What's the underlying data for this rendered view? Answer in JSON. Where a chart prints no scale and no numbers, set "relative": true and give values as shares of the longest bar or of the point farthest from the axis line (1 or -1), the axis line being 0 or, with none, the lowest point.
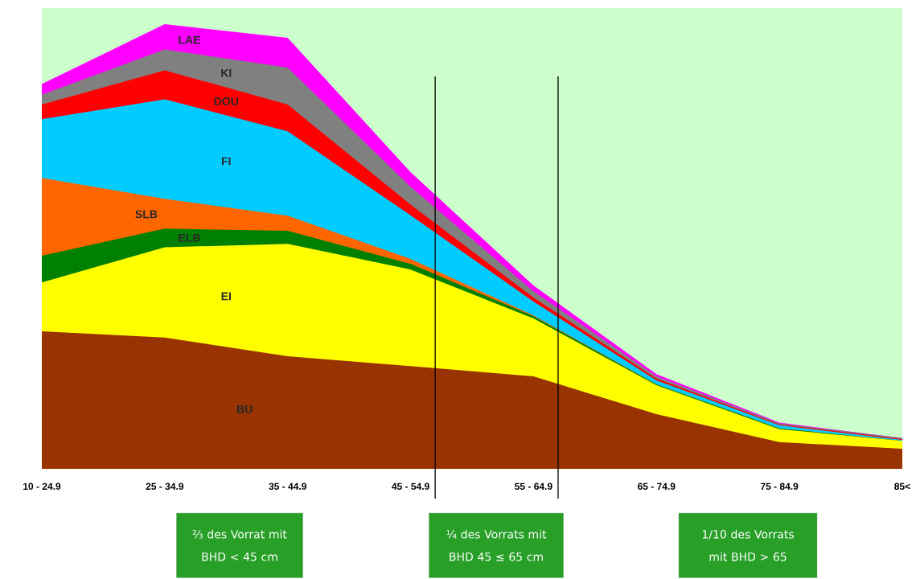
{
  "chart_data": {
    "type": "area",
    "relative": true,
    "stacked": true,
    "categories": [
      "10 - 24.9",
      "25 - 34.9",
      "35 - 44.9",
      "45 - 54.9",
      "55 - 64.9",
      "65 - 74.9",
      "75 - 84.9",
      "85<"
    ],
    "series": [
      {
        "name": "BU",
        "color": "#993300",
        "values": [
          0.309,
          0.295,
          0.253,
          0.231,
          0.208,
          0.123,
          0.06,
          0.045
        ]
      },
      {
        "name": "EI",
        "color": "#ffff00",
        "values": [
          0.11,
          0.203,
          0.253,
          0.217,
          0.13,
          0.065,
          0.029,
          0.018
        ]
      },
      {
        "name": "ELB",
        "color": "#008000",
        "values": [
          0.06,
          0.042,
          0.029,
          0.013,
          0.005,
          0.002,
          0.002,
          0
        ]
      },
      {
        "name": "SLB",
        "color": "#ff6600",
        "values": [
          0.175,
          0.067,
          0.034,
          0.011,
          0.002,
          0,
          0,
          0
        ]
      },
      {
        "name": "FI",
        "color": "#00ccff",
        "values": [
          0.132,
          0.224,
          0.19,
          0.098,
          0.031,
          0.009,
          0.007,
          0.002
        ]
      },
      {
        "name": "DOU",
        "color": "#ff0000",
        "values": [
          0.033,
          0.065,
          0.06,
          0.024,
          0.009,
          0.004,
          0.002,
          0.002
        ]
      },
      {
        "name": "KI",
        "color": "#808080",
        "values": [
          0.022,
          0.047,
          0.083,
          0.04,
          0.014,
          0.005,
          0.002,
          0.002
        ]
      },
      {
        "name": "LAE",
        "color": "#ff00ff",
        "values": [
          0.024,
          0.057,
          0.067,
          0.033,
          0.013,
          0.005,
          0.002,
          0
        ]
      }
    ],
    "ref_lines": [
      {
        "axis": "x",
        "value": "45 - 54.9",
        "color": "#000000"
      },
      {
        "axis": "x",
        "value": "55 - 64.9",
        "color": "#000000"
      }
    ],
    "annotations": [
      "⅔ des Vorrat mit BHD < 45 cm",
      "¼ des Vorrats mit BHD 45 ≤ 65 cm",
      "1/10 des Vorrats mit BHD > 65"
    ]
  }
}
